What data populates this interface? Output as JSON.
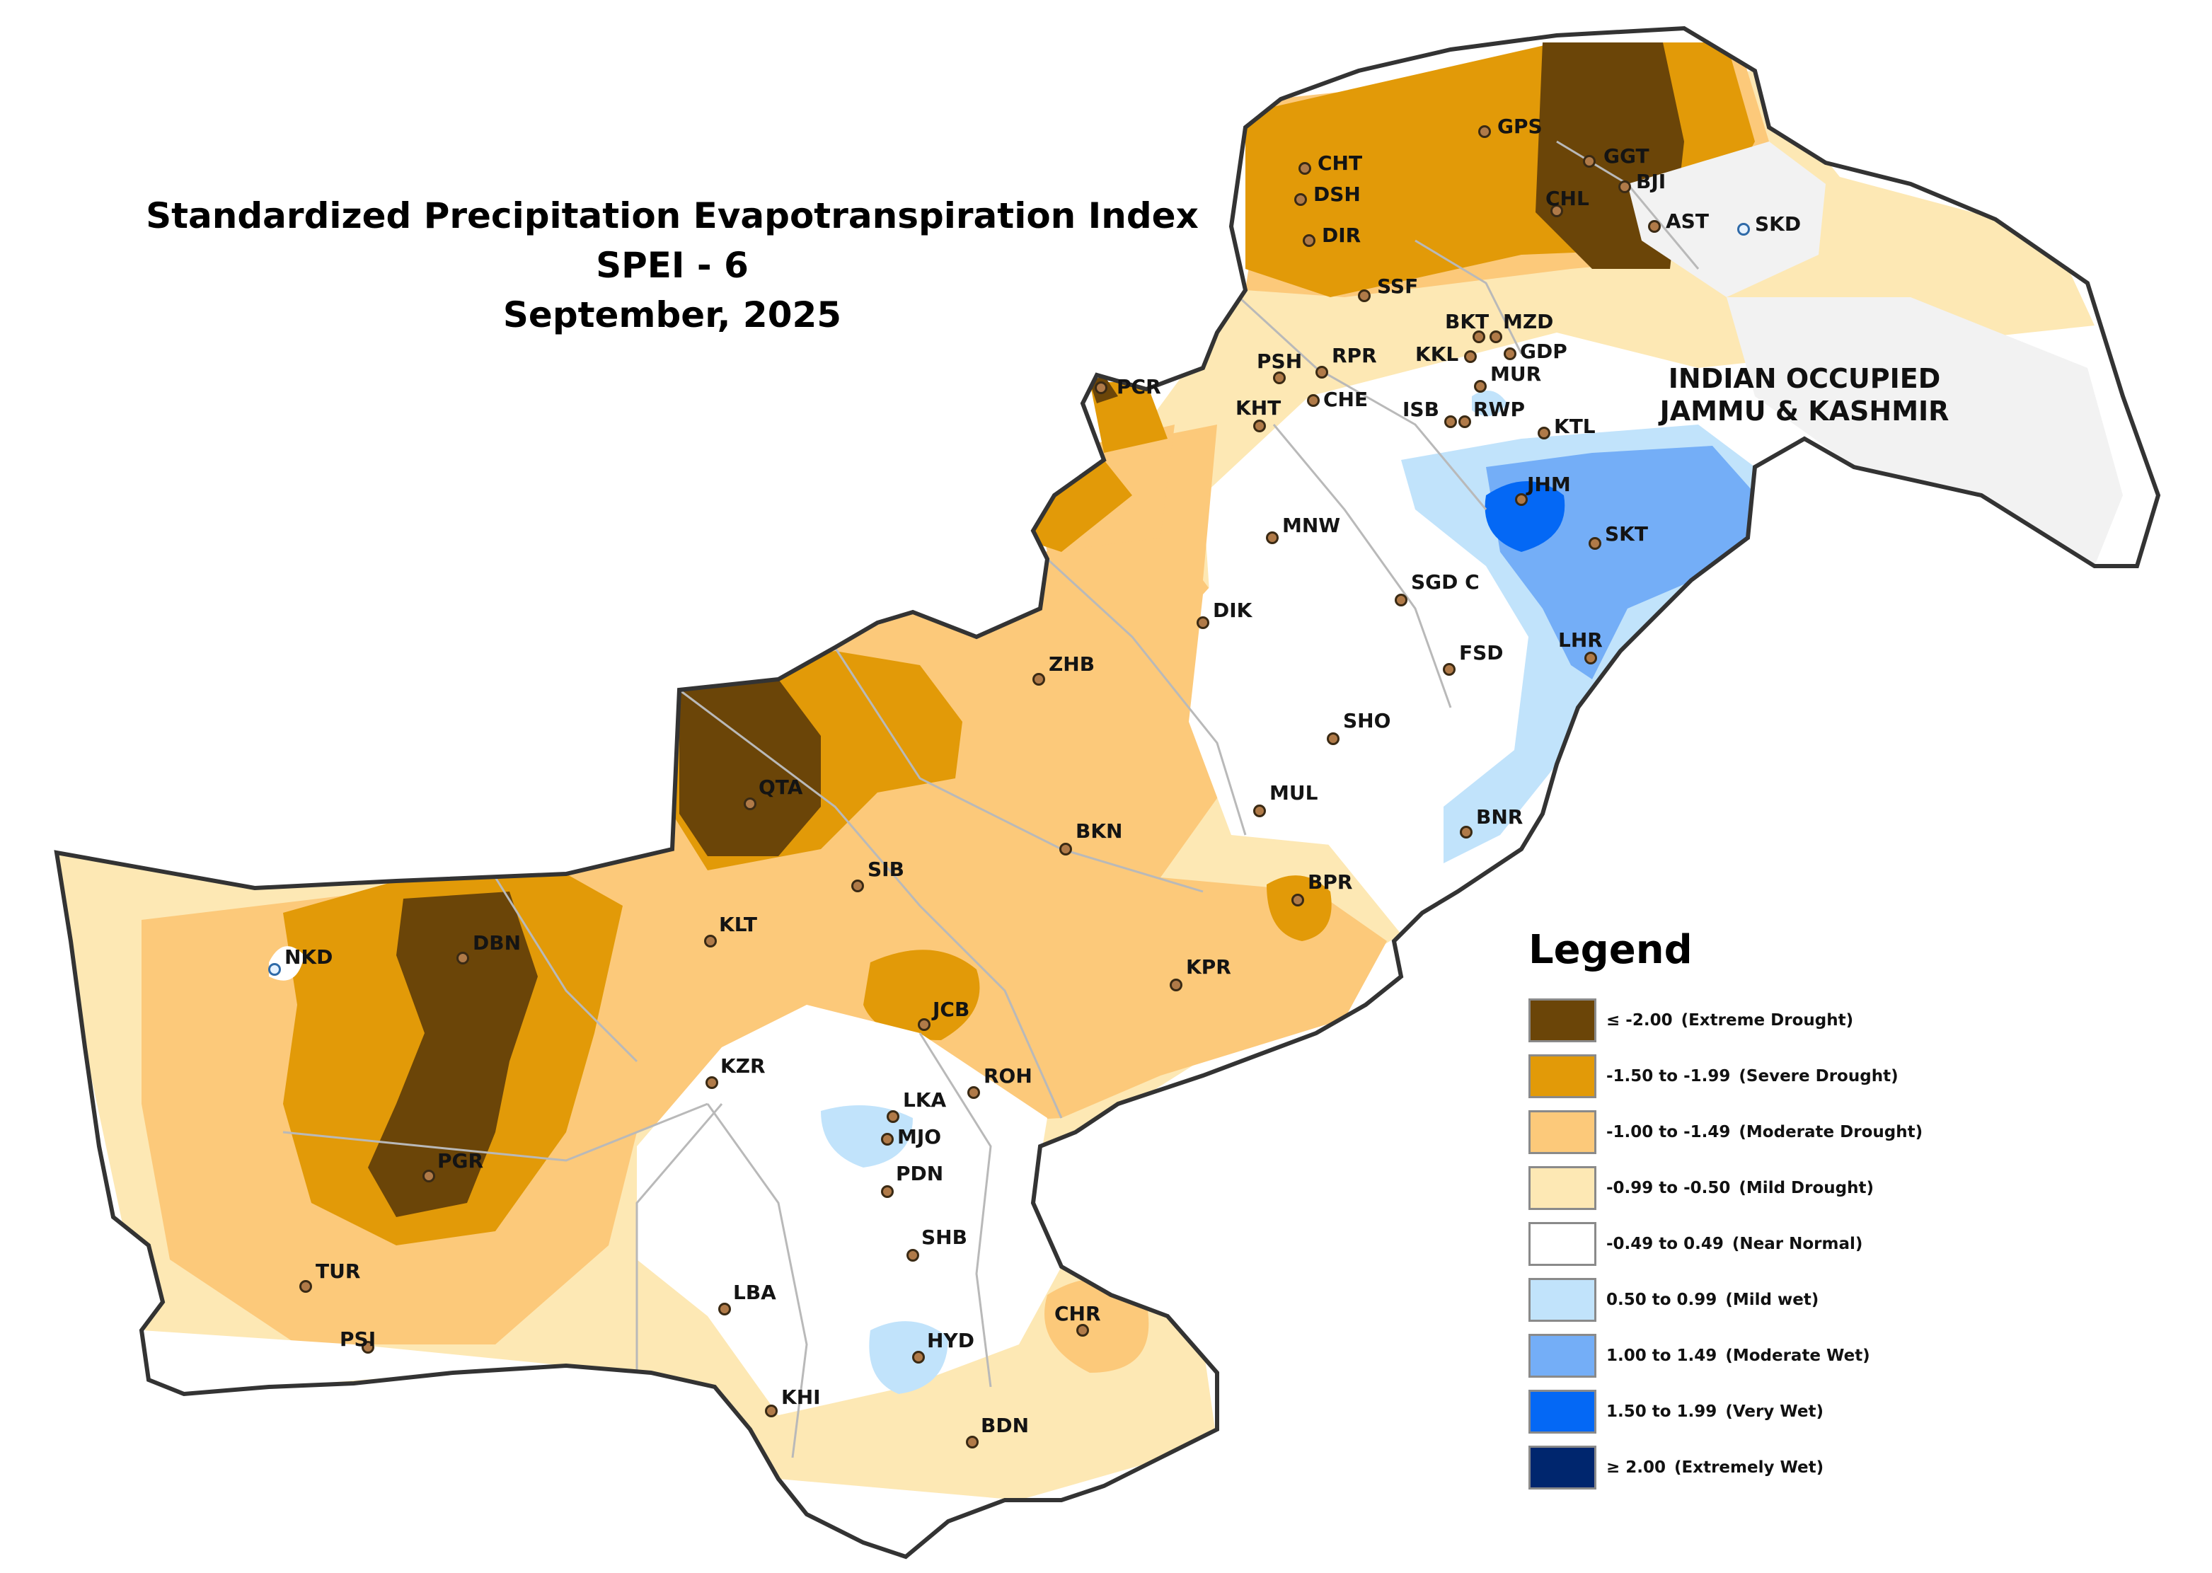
{
  "title": {
    "line1": "Standardized Precipitation Evapotranspiration Index",
    "line2": "SPEI - 6",
    "line3": "September, 2025"
  },
  "region_label": {
    "line1": "INDIAN OCCUPIED",
    "line2": "JAMMU & KASHMIR"
  },
  "legend": {
    "title": "Legend",
    "items": [
      {
        "range": "≤ -2.00",
        "desc": "(Extreme Drought)",
        "color": "#6b4508"
      },
      {
        "range": "-1.50 to -1.99",
        "desc": "(Severe Drought)",
        "color": "#e29a08"
      },
      {
        "range": "-1.00 to -1.49",
        "desc": "(Moderate Drought)",
        "color": "#fcc97a"
      },
      {
        "range": "-0.99 to -0.50",
        "desc": "(Mild Drought)",
        "color": "#fde8b4"
      },
      {
        "range": "-0.49 to 0.49",
        "desc": "(Near Normal)",
        "color": "#ffffff"
      },
      {
        "range": "0.50 to 0.99",
        "desc": "(Mild wet)",
        "color": "#c1e3fb"
      },
      {
        "range": "1.00 to 1.49",
        "desc": "(Moderate Wet)",
        "color": "#74aef7"
      },
      {
        "range": "1.50 to 1.99",
        "desc": "(Very Wet)",
        "color": "#0468f5"
      },
      {
        "range": "≥ 2.00",
        "desc": "(Extremely Wet)",
        "color": "#00266e"
      }
    ]
  },
  "stations": [
    {
      "code": "GPS"
    },
    {
      "code": "GGT"
    },
    {
      "code": "CHT"
    },
    {
      "code": "BJI"
    },
    {
      "code": "DSH"
    },
    {
      "code": "CHL"
    },
    {
      "code": "AST"
    },
    {
      "code": "SKD"
    },
    {
      "code": "DIR"
    },
    {
      "code": "SSF"
    },
    {
      "code": "BKT"
    },
    {
      "code": "MZD"
    },
    {
      "code": "KKL"
    },
    {
      "code": "GDP"
    },
    {
      "code": "PSH"
    },
    {
      "code": "RPR"
    },
    {
      "code": "MUR"
    },
    {
      "code": "PCR"
    },
    {
      "code": "CHE"
    },
    {
      "code": "ISB"
    },
    {
      "code": "RWP"
    },
    {
      "code": "KHT"
    },
    {
      "code": "KTL"
    },
    {
      "code": "JHM"
    },
    {
      "code": "MNW"
    },
    {
      "code": "SKT"
    },
    {
      "code": "SGD C"
    },
    {
      "code": "DIK"
    },
    {
      "code": "LHR"
    },
    {
      "code": "FSD"
    },
    {
      "code": "ZHB"
    },
    {
      "code": "SHO"
    },
    {
      "code": "QTA"
    },
    {
      "code": "MUL"
    },
    {
      "code": "BKN"
    },
    {
      "code": "BNR"
    },
    {
      "code": "SIB"
    },
    {
      "code": "BPR"
    },
    {
      "code": "NKD"
    },
    {
      "code": "DBN"
    },
    {
      "code": "KLT"
    },
    {
      "code": "KPR"
    },
    {
      "code": "JCB"
    },
    {
      "code": "KZR"
    },
    {
      "code": "ROH"
    },
    {
      "code": "LKA"
    },
    {
      "code": "MJO"
    },
    {
      "code": "PGR"
    },
    {
      "code": "PDN"
    },
    {
      "code": "SHB"
    },
    {
      "code": "TUR"
    },
    {
      "code": "LBA"
    },
    {
      "code": "CHR"
    },
    {
      "code": "PSI"
    },
    {
      "code": "HYD"
    },
    {
      "code": "KHI"
    },
    {
      "code": "BDN"
    }
  ]
}
